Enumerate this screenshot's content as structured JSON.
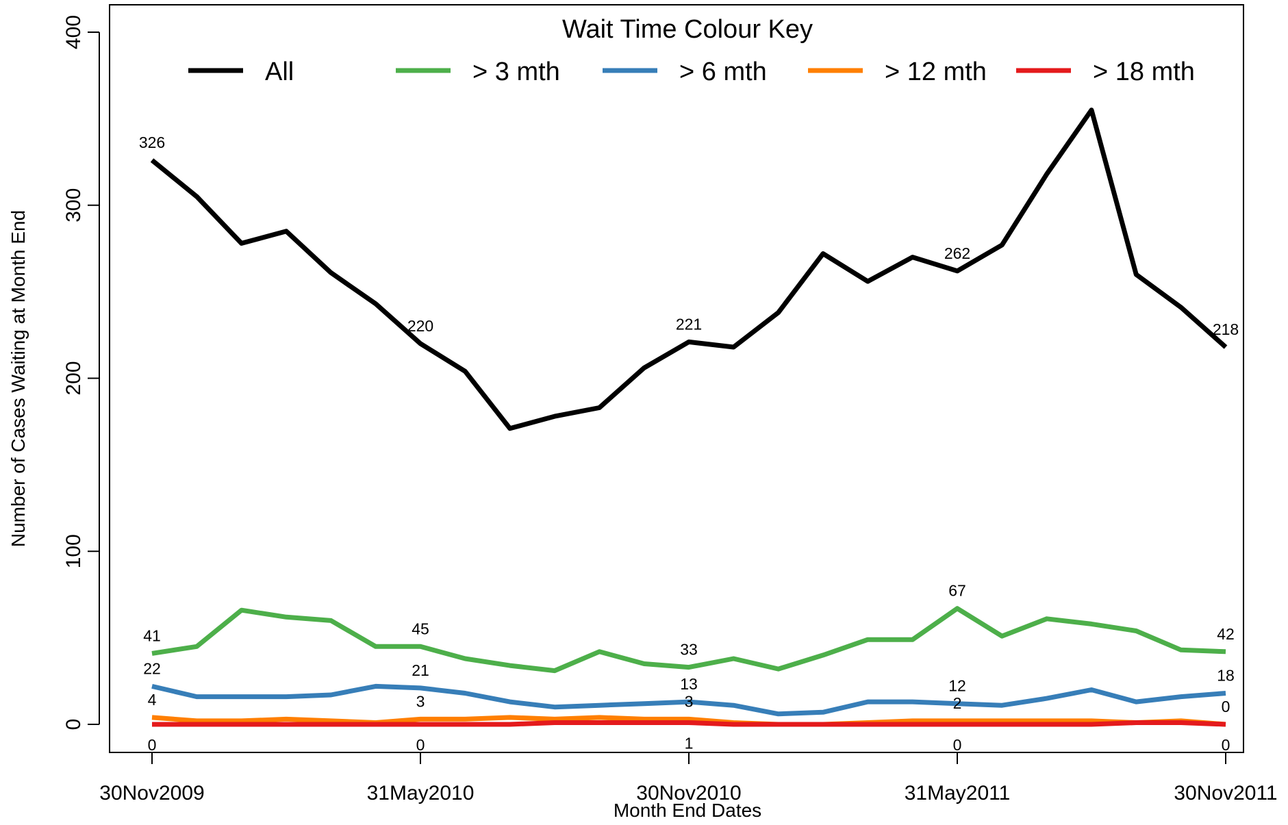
{
  "chart_data": {
    "type": "line",
    "xlabel": "Month End Dates",
    "ylabel": "Number of Cases Waiting at Month End",
    "ylim": [
      0,
      400
    ],
    "yticks": [
      0,
      100,
      200,
      300,
      400
    ],
    "x": [
      "30Nov2009",
      "31Dec2009",
      "31Jan2010",
      "28Feb2010",
      "31Mar2010",
      "30Apr2010",
      "31May2010",
      "30Jun2010",
      "31Jul2010",
      "31Aug2010",
      "30Sep2010",
      "31Oct2010",
      "30Nov2010",
      "31Dec2010",
      "31Jan2011",
      "28Feb2011",
      "31Mar2011",
      "30Apr2011",
      "31May2011",
      "30Jun2011",
      "31Jul2011",
      "31Aug2011",
      "30Sep2011",
      "31Oct2011",
      "30Nov2011"
    ],
    "xtick_labels": [
      "30Nov2009",
      "31May2010",
      "30Nov2010",
      "31May2011",
      "30Nov2011"
    ],
    "grid": false,
    "legend": {
      "title": "Wait Time Colour Key",
      "position": "top"
    },
    "series": [
      {
        "name": "All",
        "color": "#000000",
        "values": [
          326,
          305,
          278,
          285,
          261,
          243,
          220,
          204,
          171,
          178,
          183,
          206,
          221,
          218,
          238,
          272,
          256,
          270,
          262,
          277,
          318,
          355,
          260,
          241,
          218
        ],
        "labels": [
          "326",
          "220",
          "221",
          "262",
          "218"
        ]
      },
      {
        "name": "> 3 mth",
        "color": "#4DAF4A",
        "values": [
          41,
          45,
          66,
          62,
          60,
          45,
          45,
          38,
          34,
          31,
          42,
          35,
          33,
          38,
          32,
          40,
          49,
          49,
          67,
          51,
          61,
          58,
          54,
          43,
          42
        ],
        "labels": [
          "41",
          "45",
          "33",
          "67",
          "42"
        ]
      },
      {
        "name": "> 6 mth",
        "color": "#377EB8",
        "values": [
          22,
          16,
          16,
          16,
          17,
          22,
          21,
          18,
          13,
          10,
          11,
          12,
          13,
          11,
          6,
          7,
          13,
          13,
          12,
          11,
          15,
          20,
          13,
          16,
          18
        ],
        "labels": [
          "22",
          "21",
          "13",
          "12",
          "18"
        ]
      },
      {
        "name": "> 12 mth",
        "color": "#FF7F00",
        "values": [
          4,
          2,
          2,
          3,
          2,
          1,
          3,
          3,
          4,
          3,
          4,
          3,
          3,
          1,
          0,
          0,
          1,
          2,
          2,
          2,
          2,
          2,
          1,
          2,
          0
        ],
        "labels": [
          "4",
          "3",
          "3",
          "2",
          "0"
        ]
      },
      {
        "name": "> 18 mth",
        "color": "#E41A1C",
        "values": [
          0,
          0,
          0,
          0,
          0,
          0,
          0,
          0,
          0,
          1,
          1,
          1,
          1,
          0,
          0,
          0,
          0,
          0,
          0,
          0,
          0,
          0,
          1,
          1,
          0
        ],
        "labels": [
          "0",
          "0",
          "1",
          "0",
          "0"
        ]
      }
    ]
  }
}
